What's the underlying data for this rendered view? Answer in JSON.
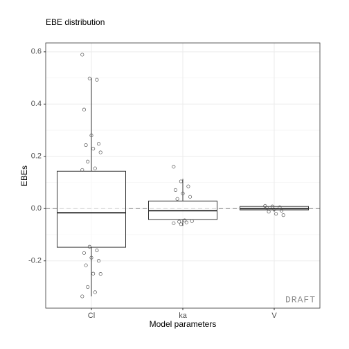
{
  "chart_data": {
    "type": "box",
    "title": "EBE distribution",
    "x_label": "Model parameters",
    "y_label": "EBEs",
    "watermark": "DRAFT",
    "categories": [
      "Cl",
      "ka",
      "V"
    ],
    "boxes": [
      {
        "min": -0.336,
        "q1": -0.148,
        "median": -0.016,
        "q3": 0.143,
        "max": 0.5,
        "points": [
          0.589,
          0.498,
          0.493,
          0.379,
          0.28,
          0.248,
          0.243,
          0.229,
          0.215,
          0.18,
          0.154,
          0.148,
          -0.146,
          -0.16,
          -0.17,
          -0.188,
          -0.2,
          -0.217,
          -0.249,
          -0.25,
          -0.3,
          -0.32,
          -0.336
        ]
      },
      {
        "min": -0.066,
        "q1": -0.042,
        "median": -0.008,
        "q3": 0.029,
        "max": 0.114,
        "points": [
          0.16,
          0.104,
          0.085,
          0.071,
          0.058,
          0.045,
          0.037,
          -0.045,
          -0.048,
          -0.05,
          -0.053,
          -0.056,
          -0.06
        ]
      },
      {
        "min": -0.012,
        "q1": -0.005,
        "median": 0,
        "q3": 0.008,
        "max": 0.01,
        "points": [
          0.01,
          0.008,
          0.005,
          0.002,
          -0.003,
          -0.008,
          -0.012,
          -0.02,
          -0.025
        ]
      }
    ],
    "hline": 0,
    "ylim": [
      -0.381,
      0.634
    ],
    "yticks": [
      -0.2,
      {
        "value": 0,
        "label": "0.0"
      },
      0.2,
      0.4,
      0.6
    ],
    "grid": true
  }
}
